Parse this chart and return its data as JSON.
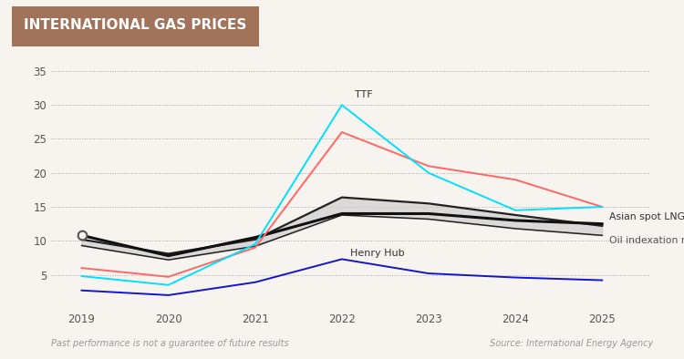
{
  "title": "INTERNATIONAL GAS PRICES",
  "title_bg_color": "#A0735A",
  "title_text_color": "#ffffff",
  "background_color": "#f7f3ee",
  "years": [
    2019,
    2020,
    2021,
    2022,
    2023,
    2024,
    2025
  ],
  "ttf": [
    null,
    null,
    null,
    30.0,
    20.0,
    14.5,
    15.0
  ],
  "red_line": [
    6.0,
    4.7,
    9.0,
    26.0,
    21.0,
    19.0,
    15.0
  ],
  "cyan_line": [
    4.8,
    3.5,
    9.5,
    null,
    null,
    null,
    null
  ],
  "asian_spot_lng": [
    10.8,
    7.8,
    10.5,
    14.0,
    14.0,
    13.0,
    12.5
  ],
  "oil_index_upper": [
    10.2,
    8.1,
    10.2,
    16.4,
    15.5,
    13.8,
    12.2
  ],
  "oil_index_lower": [
    9.3,
    7.2,
    9.2,
    13.8,
    13.2,
    11.8,
    10.8
  ],
  "henry_hub": [
    2.7,
    2.0,
    3.9,
    7.3,
    5.2,
    4.6,
    4.2
  ],
  "ttf_label": "TTF",
  "asian_lng_label": "Asian spot LNG",
  "oil_index_label": "Oil indexation range",
  "henry_hub_label": "Henry Hub",
  "footnote_left": "Past performance is not a guarantee of future results",
  "footnote_right": "Source: International Energy Agency",
  "ylim": [
    0,
    37
  ],
  "yticks": [
    0,
    5,
    10,
    15,
    20,
    25,
    30,
    35
  ],
  "color_ttf": "#00e0ff",
  "color_asian": "#111111",
  "color_oil_fill": "#cccccc",
  "color_henry": "#1515cc",
  "color_red": "#ff6666",
  "color_cyan_start": "#00d8d8"
}
